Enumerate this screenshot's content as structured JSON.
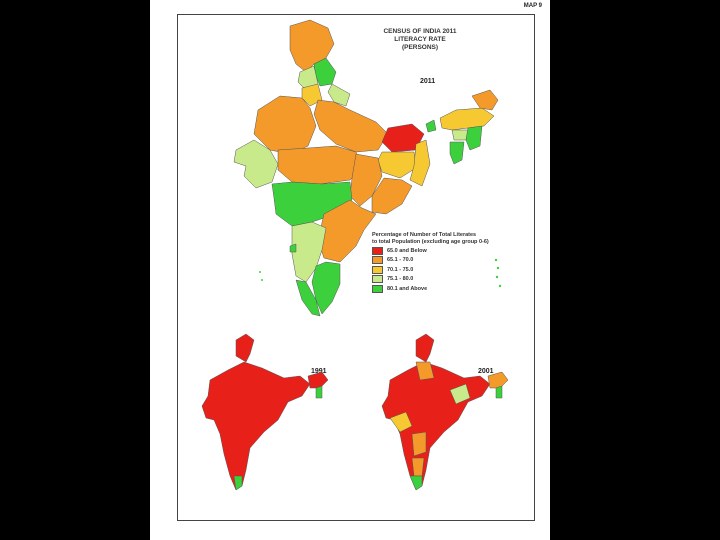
{
  "map_number": "MAP 9",
  "title_lines": [
    "CENSUS OF INDIA 2011",
    "LITERACY RATE",
    "(PERSONS)"
  ],
  "years": {
    "main": "2011",
    "left": "1991",
    "right": "2001"
  },
  "legend": {
    "title_lines": [
      "Percentage of Number of Total Literates",
      "to total Population (excluding age group 0-6)"
    ],
    "items": [
      {
        "label": "65.0 and Below",
        "color": "#e8201a"
      },
      {
        "label": "65.1 - 70.0",
        "color": "#f39a2a"
      },
      {
        "label": "70.1 - 75.0",
        "color": "#f6c932"
      },
      {
        "label": "75.1 - 80.0",
        "color": "#c9ea8a"
      },
      {
        "label": "80.1 and Above",
        "color": "#3cd13c"
      }
    ]
  }
}
